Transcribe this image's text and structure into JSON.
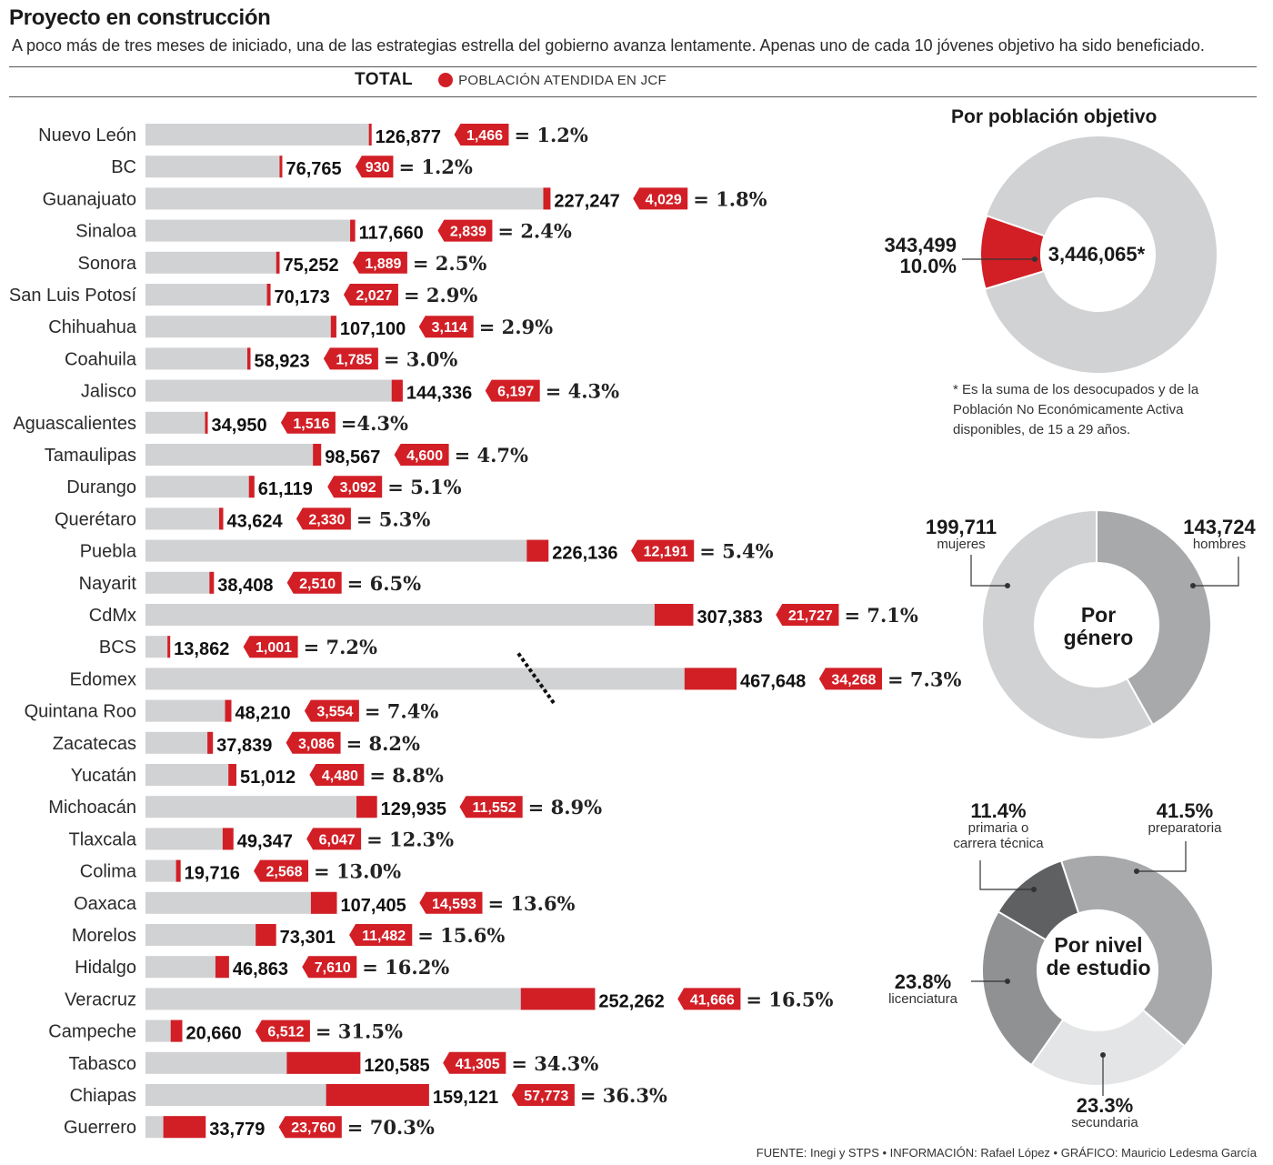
{
  "title": "Proyecto en construcción",
  "subtitle": "A poco más de tres meses de iniciado, una de las estrategias estrella del gobierno avanza lentamente. Apenas uno de cada 10 jóvenes objetivo ha sido beneficiado.",
  "legend": {
    "total": "TOTAL",
    "attended": "POBLACIÓN ATENDIDA EN JCF"
  },
  "colors": {
    "red": "#d21f26",
    "gray_bar": "#d1d2d4",
    "donut_light": "#d1d2d4",
    "donut_mid": "#a7a9ab",
    "donut_dark": "#5f6062",
    "donut_mid2": "#8f9193",
    "donut_pale": "#e4e5e6"
  },
  "chart_data": [
    {
      "type": "bar",
      "orientation": "horizontal",
      "series": [
        {
          "name": "TOTAL"
        },
        {
          "name": "POBLACIÓN ATENDIDA EN JCF"
        }
      ],
      "categories": [
        "Nuevo León",
        "BC",
        "Guanajuato",
        "Sinaloa",
        "Sonora",
        "San Luis Potosí",
        "Chihuahua",
        "Coahuila",
        "Jalisco",
        "Aguascalientes",
        "Tamaulipas",
        "Durango",
        "Querétaro",
        "Puebla",
        "Nayarit",
        "CdMx",
        "BCS",
        "Edomex",
        "Quintana Roo",
        "Zacatecas",
        "Yucatán",
        "Michoacán",
        "Tlaxcala",
        "Colima",
        "Oaxaca",
        "Morelos",
        "Hidalgo",
        "Veracruz",
        "Campeche",
        "Tabasco",
        "Chiapas",
        "Guerrero"
      ],
      "total": [
        126877,
        76765,
        227247,
        117660,
        75252,
        70173,
        107100,
        58923,
        144336,
        34950,
        98567,
        61119,
        43624,
        226136,
        38408,
        307383,
        13862,
        467648,
        48210,
        37839,
        51012,
        129935,
        49347,
        19716,
        107405,
        73301,
        46863,
        252262,
        20660,
        120585,
        159121,
        33779
      ],
      "total_labels": [
        "126,877",
        "76,765",
        "227,247",
        "117,660",
        "75,252",
        "70,173",
        "107,100",
        "58,923",
        "144,336",
        "34,950",
        "98,567",
        "61,119",
        "43,624",
        "226,136",
        "38,408",
        "307,383",
        "13,862",
        "467,648",
        "48,210",
        "37,839",
        "51,012",
        "129,935",
        "49,347",
        "19,716",
        "107,405",
        "73,301",
        "46,863",
        "252,262",
        "20,660",
        "120,585",
        "159,121",
        "33,779"
      ],
      "attended": [
        1466,
        930,
        4029,
        2839,
        1889,
        2027,
        3114,
        1785,
        6197,
        1516,
        4600,
        3092,
        2330,
        12191,
        2510,
        21727,
        1001,
        34268,
        3554,
        3086,
        4480,
        11552,
        6047,
        2568,
        14593,
        11482,
        7610,
        41666,
        6512,
        41305,
        57773,
        23760
      ],
      "attended_labels": [
        "1,466",
        "930",
        "4,029",
        "2,839",
        "1,889",
        "2,027",
        "3,114",
        "1,785",
        "6,197",
        "1,516",
        "4,600",
        "3,092",
        "2,330",
        "12,191",
        "2,510",
        "21,727",
        "1,001",
        "34,268",
        "3,554",
        "3,086",
        "4,480",
        "11,552",
        "6,047",
        "2,568",
        "14,593",
        "11,482",
        "7,610",
        "41,666",
        "6,512",
        "41,305",
        "57,773",
        "23,760"
      ],
      "pct_labels": [
        "= 1.2%",
        "= 1.2%",
        "= 1.8%",
        "= 2.4%",
        "= 2.5%",
        "= 2.9%",
        "= 2.9%",
        "= 3.0%",
        "= 4.3%",
        "=4.3%",
        "= 4.7%",
        "= 5.1%",
        "= 5.3%",
        "= 5.4%",
        "= 6.5%",
        "= 7.1%",
        "= 7.2%",
        "= 7.3%",
        "= 7.4%",
        "= 8.2%",
        "= 8.8%",
        "= 8.9%",
        "= 12.3%",
        "= 13.0%",
        "= 13.6%",
        "= 15.6%",
        "= 16.2%",
        "= 16.5%",
        "= 31.5%",
        "= 34.3%",
        "= 36.3%",
        "= 70.3%"
      ],
      "axis_break_category": "Edomex"
    },
    {
      "type": "pie",
      "title": "Por población objetivo",
      "center_value": "3,446,065*",
      "slices": [
        {
          "label": "343,499",
          "sub": "10.0%",
          "value": 10.0
        },
        {
          "label": "",
          "sub": "",
          "value": 90.0
        }
      ]
    },
    {
      "type": "pie",
      "title": "Por género",
      "center_line1": "Por",
      "center_line2": "género",
      "slices": [
        {
          "label": "199,711",
          "sub": "mujeres",
          "value": 199711
        },
        {
          "label": "143,724",
          "sub": "hombres",
          "value": 143724
        }
      ]
    },
    {
      "type": "pie",
      "title": "Por nivel de estudio",
      "center_line1": "Por nivel",
      "center_line2": "de estudio",
      "slices": [
        {
          "label": "41.5%",
          "sub": "preparatoria",
          "value": 41.5
        },
        {
          "label": "23.3%",
          "sub": "secundaria",
          "value": 23.3
        },
        {
          "label": "23.8%",
          "sub": "licenciatura",
          "value": 23.8
        },
        {
          "label": "11.4%",
          "sub": "primaria o",
          "sub2": "carrera técnica",
          "value": 11.4
        }
      ]
    }
  ],
  "note": "* Es la suma de los desocupados y de la Población No Económicamente Activa disponibles, de 15 a 29 años.",
  "footer": "FUENTE: Inegi y STPS  •  INFORMACIÓN: Rafael López  •  GRÁFICO: Mauricio Ledesma García"
}
